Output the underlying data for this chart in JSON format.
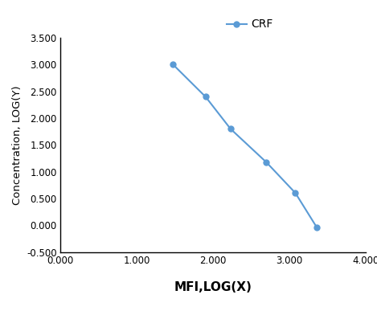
{
  "x": [
    1.477,
    1.903,
    2.23,
    2.699,
    3.079,
    3.362
  ],
  "y": [
    3.0,
    2.398,
    1.799,
    1.176,
    0.602,
    -0.046
  ],
  "line_color": "#5b9bd5",
  "marker": "o",
  "marker_color": "#5b9bd5",
  "marker_size": 5,
  "legend_label": "CRF",
  "xlabel": "MFI,LOG(X)",
  "ylabel": "Concentration, LOG(Y)",
  "xlim": [
    0.0,
    4.0
  ],
  "ylim": [
    -0.5,
    3.5
  ],
  "xticks": [
    0.0,
    1.0,
    2.0,
    3.0,
    4.0
  ],
  "yticks": [
    -0.5,
    0.0,
    0.5,
    1.0,
    1.5,
    2.0,
    2.5,
    3.0,
    3.5
  ],
  "xtick_labels": [
    "0.000",
    "1.000",
    "2.000",
    "3.000",
    "4.000"
  ],
  "ytick_labels": [
    "-0.500",
    "0.000",
    "0.500",
    "1.000",
    "1.500",
    "2.000",
    "2.500",
    "3.000",
    "3.500"
  ],
  "background_color": "#ffffff",
  "xlabel_fontsize": 11,
  "ylabel_fontsize": 9.5,
  "tick_fontsize": 8.5,
  "legend_fontsize": 10,
  "line_width": 1.5
}
